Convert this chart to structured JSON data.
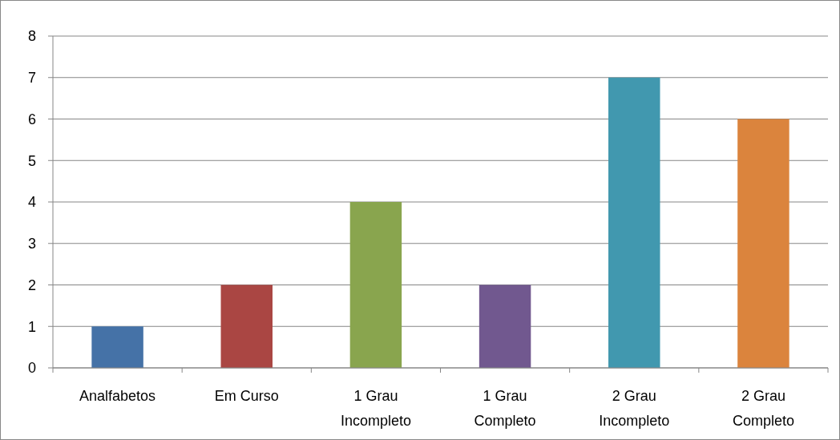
{
  "chart_data": {
    "type": "bar",
    "categories": [
      "Analfabetos",
      "Em Curso",
      "1 Grau Incompleto",
      "1 Grau Completo",
      "2 Grau Incompleto",
      "2 Grau Completo"
    ],
    "values": [
      1,
      2,
      4,
      2,
      7,
      6
    ],
    "colors": [
      "#4572a7",
      "#aa4643",
      "#89a54e",
      "#71588f",
      "#4198af",
      "#db843d"
    ],
    "ylim": [
      0,
      8
    ],
    "yticks": [
      0,
      1,
      2,
      3,
      4,
      5,
      6,
      7,
      8
    ],
    "grid": "y"
  }
}
